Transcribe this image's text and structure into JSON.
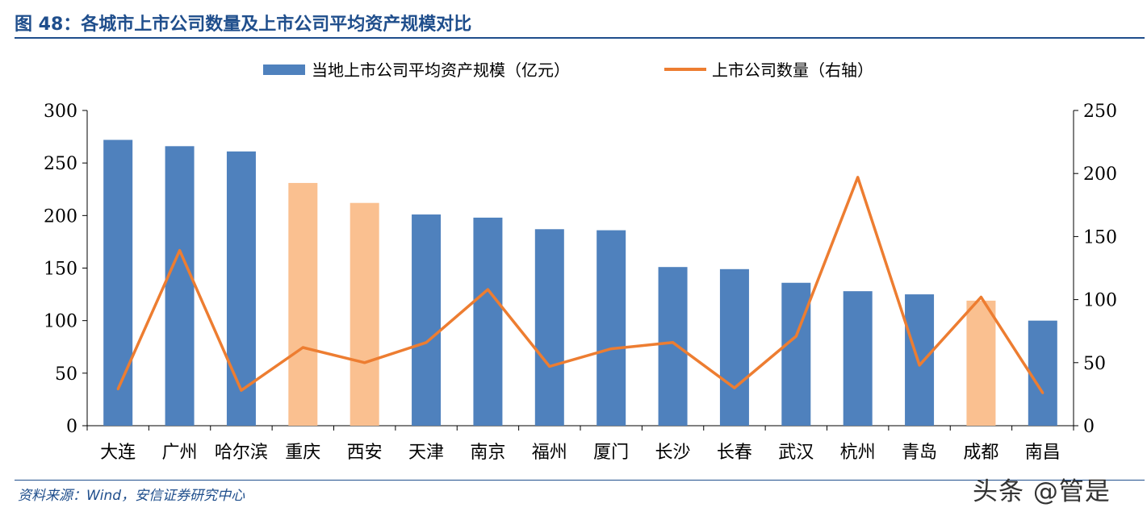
{
  "figure": {
    "title": "图 48：各城市上市公司数量及上市公司平均资产规模对比",
    "source": "资料来源：Wind，安信证券研究中心",
    "watermark": "头条 @管是"
  },
  "chart_data": {
    "type": "bar",
    "categories": [
      "大连",
      "广州",
      "哈尔滨",
      "重庆",
      "西安",
      "天津",
      "南京",
      "福州",
      "厦门",
      "长沙",
      "长春",
      "武汉",
      "杭州",
      "青岛",
      "成都",
      "南昌"
    ],
    "series": [
      {
        "name": "当地上市公司平均资产规模（亿元）",
        "type": "bar",
        "axis": "left",
        "values": [
          272,
          266,
          261,
          231,
          212,
          201,
          198,
          187,
          186,
          151,
          149,
          136,
          128,
          125,
          119,
          100
        ],
        "color": "#4f81bd",
        "highlight_color": "#fac090",
        "highlight_categories": [
          "重庆",
          "西安",
          "成都"
        ]
      },
      {
        "name": "上市公司数量（右轴）",
        "type": "line",
        "axis": "right",
        "values": [
          29,
          139,
          28,
          62,
          50,
          66,
          108,
          47,
          61,
          66,
          30,
          71,
          197,
          48,
          102,
          26
        ],
        "color": "#ed7d31"
      }
    ],
    "y_left": {
      "ylim": [
        0,
        300
      ],
      "ticks": [
        0,
        50,
        100,
        150,
        200,
        250,
        300
      ]
    },
    "y_right": {
      "ylim": [
        0,
        250
      ],
      "ticks": [
        0,
        50,
        100,
        150,
        200,
        250
      ]
    },
    "legend_position": "top-center",
    "grid": false
  }
}
